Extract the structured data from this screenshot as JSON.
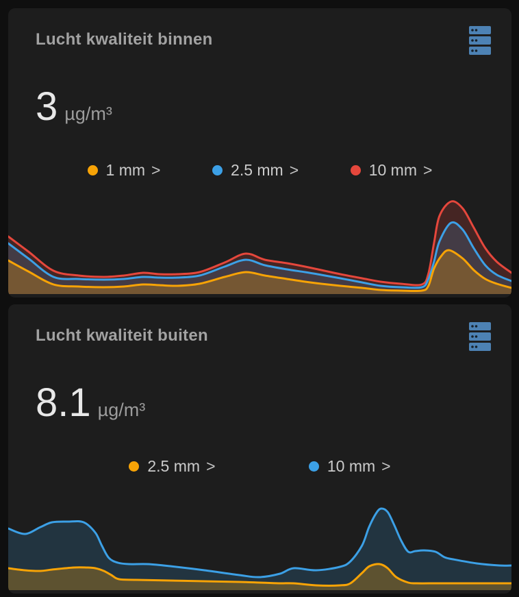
{
  "page": {
    "background": "#0f0f0f",
    "card_background": "#1d1d1d"
  },
  "icon_color": "#4d82b4",
  "cards": [
    {
      "title": "Lucht kwaliteit binnen",
      "icon": "server-icon",
      "value": "3",
      "unit": "µg/m³",
      "legend": [
        {
          "label": "1 mm",
          "arrow": ">",
          "color": "#f7a306"
        },
        {
          "label": "2.5 mm",
          "arrow": ">",
          "color": "#3ca0e6"
        },
        {
          "label": "10 mm",
          "arrow": ">",
          "color": "#e5473c"
        }
      ]
    },
    {
      "title": "Lucht kwaliteit buiten",
      "icon": "server-icon",
      "value": "8.1",
      "unit": "µg/m³",
      "legend": [
        {
          "label": "2.5 mm",
          "arrow": ">",
          "color": "#f7a306"
        },
        {
          "label": "10 mm",
          "arrow": ">",
          "color": "#3ca0e6"
        }
      ]
    }
  ],
  "chart_data": [
    {
      "type": "area",
      "title": "Lucht kwaliteit binnen - history sparkline",
      "xlabel": "",
      "ylabel": "",
      "x_units": "percent of visible time range (no axis labels shown)",
      "y_units": "relative height units (no axis labels shown)",
      "ylim": [
        0,
        150
      ],
      "grid": false,
      "legend_position": "above chart",
      "series": [
        {
          "name": "10 mm",
          "color": "#e5473c",
          "fill_opacity": 0.2,
          "points": [
            [
              0,
              84
            ],
            [
              4,
              62
            ],
            [
              9,
              34
            ],
            [
              14,
              27
            ],
            [
              19,
              25
            ],
            [
              23,
              27
            ],
            [
              26.8,
              31
            ],
            [
              30,
              29
            ],
            [
              33.6,
              29
            ],
            [
              38,
              32
            ],
            [
              43,
              46
            ],
            [
              47.2,
              59
            ],
            [
              51,
              50
            ],
            [
              55.4,
              45
            ],
            [
              59,
              40
            ],
            [
              62.2,
              35
            ],
            [
              66,
              29
            ],
            [
              70.3,
              23
            ],
            [
              74,
              18
            ],
            [
              78,
              15
            ],
            [
              82.2,
              14
            ],
            [
              83.5,
              30
            ],
            [
              84.6,
              74
            ],
            [
              85.7,
              114
            ],
            [
              88,
              135
            ],
            [
              90.3,
              125
            ],
            [
              92.5,
              97
            ],
            [
              94.8,
              67
            ],
            [
              97.1,
              47
            ],
            [
              100,
              31
            ]
          ]
        },
        {
          "name": "2.5 mm",
          "color": "#3ca0e6",
          "fill_opacity": 0.18,
          "points": [
            [
              0,
              74
            ],
            [
              4,
              52
            ],
            [
              9,
              25
            ],
            [
              14,
              22
            ],
            [
              19,
              21
            ],
            [
              23,
              22
            ],
            [
              26.8,
              25
            ],
            [
              30,
              24
            ],
            [
              33.6,
              24
            ],
            [
              38,
              27
            ],
            [
              43,
              40
            ],
            [
              47.2,
              50
            ],
            [
              51,
              42
            ],
            [
              55.4,
              36
            ],
            [
              59,
              32
            ],
            [
              62.2,
              28
            ],
            [
              66,
              23
            ],
            [
              70.3,
              17
            ],
            [
              74,
              12
            ],
            [
              78,
              10
            ],
            [
              82.2,
              10
            ],
            [
              83.5,
              22
            ],
            [
              84.6,
              47
            ],
            [
              85.7,
              77
            ],
            [
              88,
              104
            ],
            [
              90.3,
              94
            ],
            [
              92.5,
              67
            ],
            [
              94.8,
              42
            ],
            [
              97.1,
              28
            ],
            [
              100,
              19
            ]
          ]
        },
        {
          "name": "1 mm",
          "color": "#f7a306",
          "fill_opacity": 0.28,
          "points": [
            [
              0,
              49
            ],
            [
              4,
              33
            ],
            [
              9,
              14
            ],
            [
              14,
              11
            ],
            [
              19,
              10
            ],
            [
              23,
              11
            ],
            [
              26.8,
              14
            ],
            [
              30,
              13
            ],
            [
              33.6,
              12
            ],
            [
              38,
              15
            ],
            [
              43,
              25
            ],
            [
              47.2,
              32
            ],
            [
              51,
              27
            ],
            [
              55.4,
              22
            ],
            [
              59,
              18
            ],
            [
              62.2,
              15
            ],
            [
              66,
              12
            ],
            [
              70.3,
              9
            ],
            [
              74,
              6
            ],
            [
              78,
              5
            ],
            [
              82.2,
              5
            ],
            [
              83.5,
              12
            ],
            [
              84.6,
              37
            ],
            [
              86,
              55
            ],
            [
              87.6,
              64
            ],
            [
              90.3,
              52
            ],
            [
              92.5,
              35
            ],
            [
              94.8,
              22
            ],
            [
              97.1,
              15
            ],
            [
              100,
              9
            ]
          ]
        }
      ]
    },
    {
      "type": "area",
      "title": "Lucht kwaliteit buiten - history sparkline",
      "xlabel": "",
      "ylabel": "",
      "x_units": "percent of visible time range (no axis labels shown)",
      "y_units": "relative height units (no axis labels shown)",
      "ylim": [
        0,
        162
      ],
      "grid": false,
      "legend_position": "above chart",
      "series": [
        {
          "name": "10 mm",
          "color": "#3ca0e6",
          "fill_opacity": 0.18,
          "points": [
            [
              0,
              90
            ],
            [
              3.3,
              82
            ],
            [
              6.4,
              92
            ],
            [
              8.7,
              99
            ],
            [
              11.8,
              100
            ],
            [
              15,
              99
            ],
            [
              17.3,
              84
            ],
            [
              18.6,
              65
            ],
            [
              20,
              47
            ],
            [
              21.8,
              40
            ],
            [
              24,
              38
            ],
            [
              27.8,
              38
            ],
            [
              32.2,
              35
            ],
            [
              39,
              29
            ],
            [
              45.9,
              22
            ],
            [
              49.9,
              19
            ],
            [
              54,
              24
            ],
            [
              56.7,
              32
            ],
            [
              61.2,
              29
            ],
            [
              65.9,
              34
            ],
            [
              68,
              42
            ],
            [
              70.3,
              65
            ],
            [
              71.7,
              92
            ],
            [
              73.1,
              112
            ],
            [
              74.1,
              119
            ],
            [
              75.4,
              114
            ],
            [
              76.7,
              95
            ],
            [
              78.1,
              72
            ],
            [
              79.5,
              56
            ],
            [
              80.9,
              57
            ],
            [
              82.6,
              58
            ],
            [
              84.9,
              56
            ],
            [
              86.7,
              48
            ],
            [
              88.4,
              45
            ],
            [
              93.1,
              39
            ],
            [
              97.6,
              36
            ],
            [
              100,
              36
            ]
          ]
        },
        {
          "name": "2.5 mm",
          "color": "#f7a306",
          "fill_opacity": 0.28,
          "points": [
            [
              0,
              32
            ],
            [
              3.3,
              29
            ],
            [
              6.4,
              28
            ],
            [
              8.7,
              30
            ],
            [
              13,
              33
            ],
            [
              15.5,
              33
            ],
            [
              17.3,
              32
            ],
            [
              19,
              28
            ],
            [
              20.5,
              22
            ],
            [
              22,
              16
            ],
            [
              25.4,
              15
            ],
            [
              32.2,
              14
            ],
            [
              39,
              13
            ],
            [
              45.9,
              12
            ],
            [
              50,
              11
            ],
            [
              54,
              10
            ],
            [
              56.7,
              10
            ],
            [
              61.2,
              7
            ],
            [
              65.9,
              7
            ],
            [
              68,
              10
            ],
            [
              70.3,
              25
            ],
            [
              71.8,
              35
            ],
            [
              73.8,
              38
            ],
            [
              75.4,
              32
            ],
            [
              77.1,
              19
            ],
            [
              79.5,
              11
            ],
            [
              81.2,
              10
            ],
            [
              84.9,
              10
            ],
            [
              88.4,
              10
            ],
            [
              93.1,
              10
            ],
            [
              97.6,
              10
            ],
            [
              100,
              10
            ]
          ]
        }
      ]
    }
  ]
}
